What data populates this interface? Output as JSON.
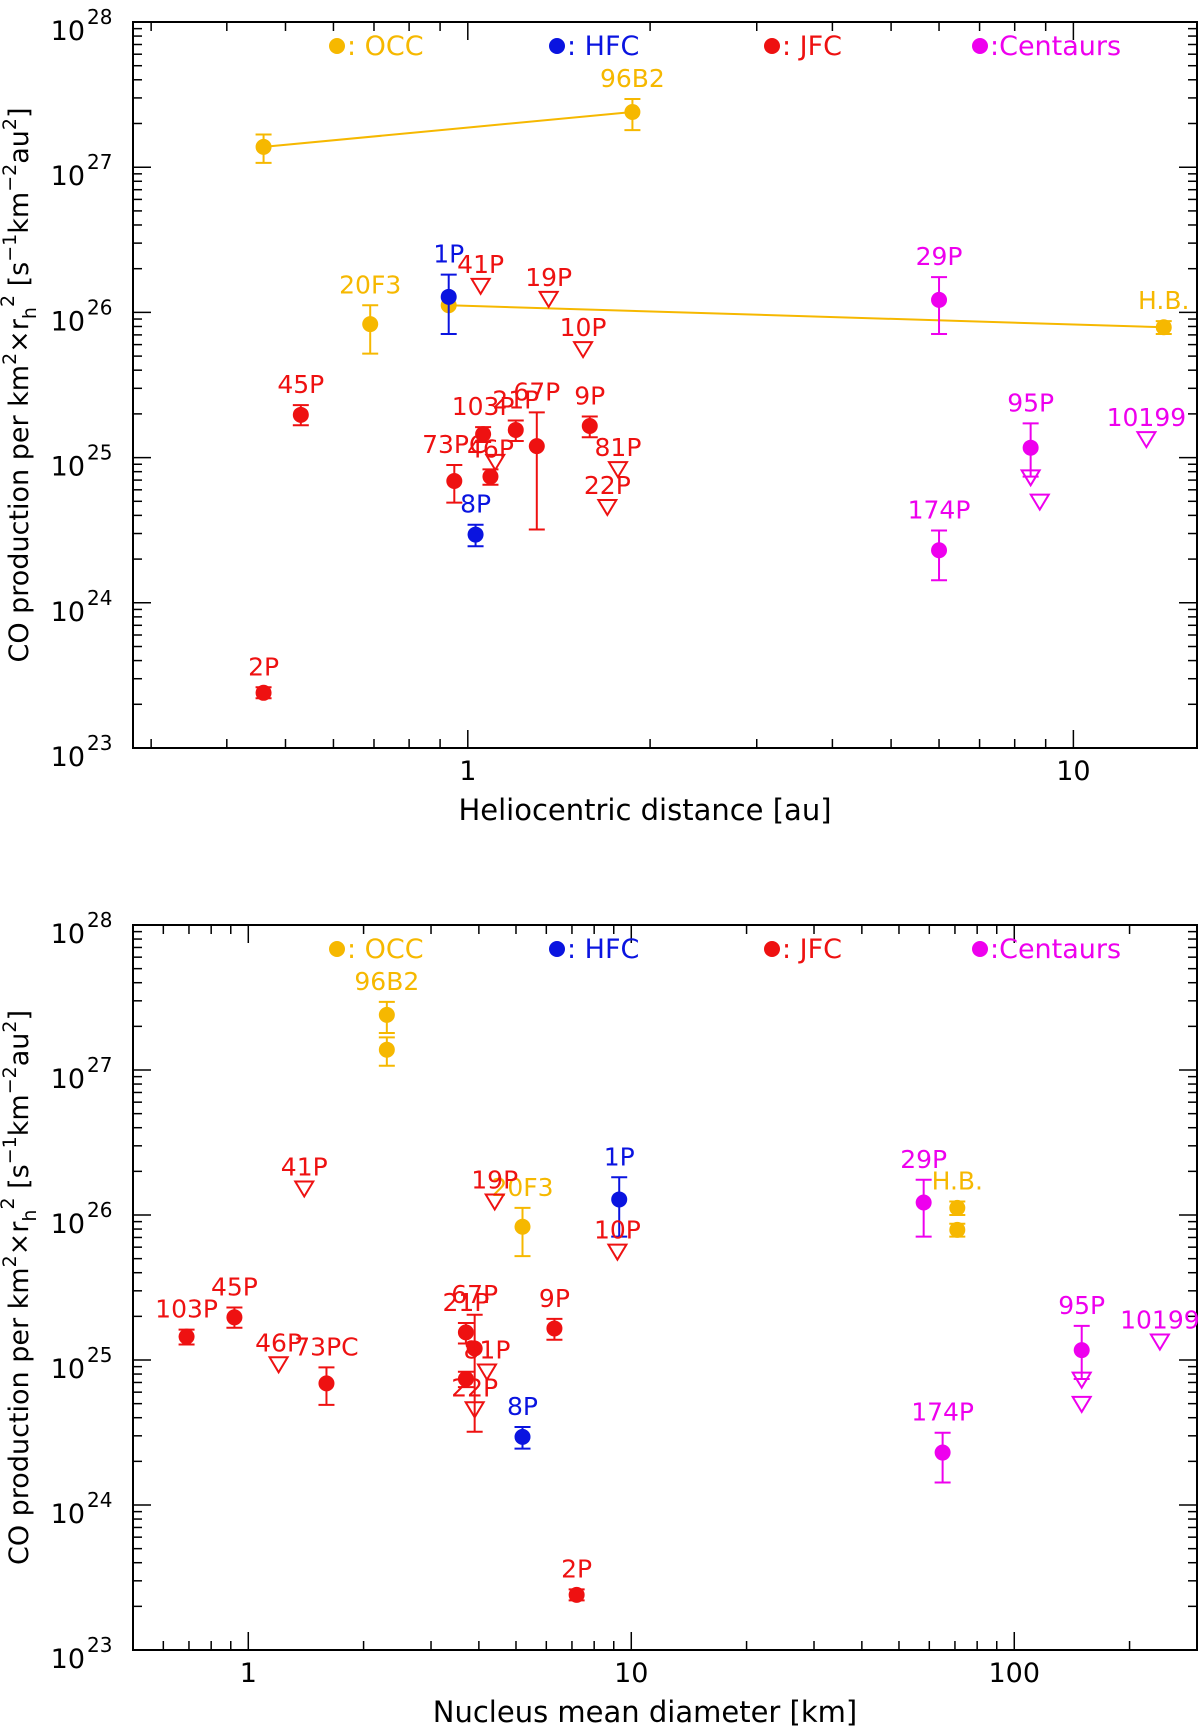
{
  "colors": {
    "OCC": "#f6b800",
    "HFC": "#0a14e0",
    "JFC": "#ee1111",
    "Centaurs": "#ee00ee",
    "axis": "#000000"
  },
  "legend": [
    {
      "group": "OCC",
      "label": ": OCC"
    },
    {
      "group": "HFC",
      "label": ": HFC"
    },
    {
      "group": "JFC",
      "label": ": JFC"
    },
    {
      "group": "Centaurs",
      "label": ":Centaurs"
    }
  ],
  "chart_data": [
    {
      "type": "scatter",
      "title": "",
      "xlabel": "Heliocentric distance [au]",
      "ylabel": {
        "text": "CO production per km",
        "sup1": "2",
        "mid": "×r",
        "sub": "h",
        "sup2": "2",
        "unit_open": " [s",
        "u1": "−1",
        "u2": "km",
        "u3": "−2",
        "u4": "au",
        "u5": "2",
        "unit_close": "]"
      },
      "xscale": "log",
      "yscale": "log",
      "xlim": [
        0.28,
        16
      ],
      "ylim": [
        1e+23,
        1e+28
      ],
      "xticks": [
        {
          "v": 1,
          "label": "1"
        },
        {
          "v": 10,
          "label": "10"
        }
      ],
      "yticks": [
        {
          "v": 1e+23,
          "base": "10",
          "exp": "23"
        },
        {
          "v": 1e+24,
          "base": "10",
          "exp": "24"
        },
        {
          "v": 1e+25,
          "base": "10",
          "exp": "25"
        },
        {
          "v": 1e+26,
          "base": "10",
          "exp": "26"
        },
        {
          "v": 1e+27,
          "base": "10",
          "exp": "27"
        },
        {
          "v": 1e+28,
          "base": "10",
          "exp": "28"
        }
      ],
      "lines": [
        {
          "group": "OCC",
          "points": [
            [
              0.46,
              1.38e+27
            ],
            [
              1.87,
              2.4e+27
            ]
          ]
        },
        {
          "group": "OCC",
          "points": [
            [
              0.93,
              1.12e+26
            ],
            [
              14.1,
              7.9e+25
            ]
          ]
        }
      ],
      "points": [
        {
          "name": "",
          "group": "OCC",
          "x": 0.46,
          "y": 1.38e+27,
          "lo": 1.07e+27,
          "hi": 1.68e+27,
          "kind": "point"
        },
        {
          "name": "96B2",
          "group": "OCC",
          "x": 1.87,
          "y": 2.4e+27,
          "lo": 1.8e+27,
          "hi": 2.95e+27,
          "kind": "point"
        },
        {
          "name": "20F3",
          "group": "OCC",
          "x": 0.69,
          "y": 8.3e+25,
          "lo": 5.2e+25,
          "hi": 1.12e+26,
          "kind": "point"
        },
        {
          "name": "",
          "group": "OCC",
          "x": 0.93,
          "y": 1.12e+26,
          "lo": 1.12e+26,
          "hi": 1.12e+26,
          "kind": "point"
        },
        {
          "name": "H.B.",
          "group": "OCC",
          "x": 14.1,
          "y": 7.9e+25,
          "lo": 7.1e+25,
          "hi": 8.7e+25,
          "kind": "point"
        },
        {
          "name": "1P",
          "group": "HFC",
          "x": 0.93,
          "y": 1.28e+26,
          "lo": 7.1e+25,
          "hi": 1.82e+26,
          "kind": "point"
        },
        {
          "name": "8P",
          "group": "HFC",
          "x": 1.03,
          "y": 2.95e+24,
          "lo": 2.45e+24,
          "hi": 3.45e+24,
          "kind": "point"
        },
        {
          "name": "2P",
          "group": "JFC",
          "x": 0.46,
          "y": 2.4e+23,
          "lo": 2.2e+23,
          "hi": 2.62e+23,
          "kind": "point"
        },
        {
          "name": "45P",
          "group": "JFC",
          "x": 0.53,
          "y": 1.97e+25,
          "lo": 1.67e+25,
          "hi": 2.3e+25,
          "kind": "point"
        },
        {
          "name": "73PC",
          "group": "JFC",
          "x": 0.95,
          "y": 6.9e+24,
          "lo": 4.9e+24,
          "hi": 8.9e+24,
          "kind": "point"
        },
        {
          "name": "103P",
          "group": "JFC",
          "x": 1.06,
          "y": 1.45e+25,
          "lo": 1.28e+25,
          "hi": 1.62e+25,
          "kind": "point"
        },
        {
          "name": "46P",
          "group": "JFC",
          "x": 1.09,
          "y": 7.4e+24,
          "lo": 6.5e+24,
          "hi": 8.3e+24,
          "kind": "point"
        },
        {
          "name": "21P",
          "group": "JFC",
          "x": 1.2,
          "y": 1.55e+25,
          "lo": 1.3e+25,
          "hi": 1.8e+25,
          "kind": "point"
        },
        {
          "name": "67P",
          "group": "JFC",
          "x": 1.3,
          "y": 1.2e+25,
          "lo": 3.2e+24,
          "hi": 2.05e+25,
          "kind": "point"
        },
        {
          "name": "9P",
          "group": "JFC",
          "x": 1.59,
          "y": 1.65e+25,
          "lo": 1.38e+25,
          "hi": 1.92e+25,
          "kind": "point"
        },
        {
          "name": "41P",
          "group": "JFC",
          "x": 1.05,
          "y": 1.5e+26,
          "kind": "upper"
        },
        {
          "name": "",
          "group": "JFC",
          "x": 1.11,
          "y": 9.2e+24,
          "kind": "upper"
        },
        {
          "name": "19P",
          "group": "JFC",
          "x": 1.36,
          "y": 1.22e+26,
          "kind": "upper"
        },
        {
          "name": "10P",
          "group": "JFC",
          "x": 1.55,
          "y": 5.5e+25,
          "kind": "upper"
        },
        {
          "name": "81P",
          "group": "JFC",
          "x": 1.77,
          "y": 8.2e+24,
          "kind": "upper"
        },
        {
          "name": "22P",
          "group": "JFC",
          "x": 1.7,
          "y": 4.5e+24,
          "kind": "upper"
        },
        {
          "name": "29P",
          "group": "Centaurs",
          "x": 6.0,
          "y": 1.22e+26,
          "lo": 7.1e+25,
          "hi": 1.75e+26,
          "kind": "point"
        },
        {
          "name": "174P",
          "group": "Centaurs",
          "x": 6.0,
          "y": 2.3e+24,
          "lo": 1.43e+24,
          "hi": 3.15e+24,
          "kind": "point"
        },
        {
          "name": "95P",
          "group": "Centaurs",
          "x": 8.5,
          "y": 1.17e+25,
          "lo": 7.4e+24,
          "hi": 1.72e+25,
          "kind": "point"
        },
        {
          "name": "",
          "group": "Centaurs",
          "x": 8.5,
          "y": 7.2e+24,
          "kind": "upper"
        },
        {
          "name": "",
          "group": "Centaurs",
          "x": 8.8,
          "y": 4.9e+24,
          "kind": "upper"
        },
        {
          "name": "10199",
          "group": "Centaurs",
          "x": 13.2,
          "y": 1.32e+25,
          "kind": "upper"
        }
      ]
    },
    {
      "type": "scatter",
      "title": "",
      "xlabel": "Nucleus mean diameter [km]",
      "ylabel": {
        "text": "CO production per km",
        "sup1": "2",
        "mid": "×r",
        "sub": "h",
        "sup2": "2",
        "unit_open": " [s",
        "u1": "−1",
        "u2": "km",
        "u3": "−2",
        "u4": "au",
        "u5": "2",
        "unit_close": "]"
      },
      "xscale": "log",
      "yscale": "log",
      "xlim": [
        0.5,
        300
      ],
      "ylim": [
        1e+23,
        1e+28
      ],
      "xticks": [
        {
          "v": 1,
          "label": "1"
        },
        {
          "v": 10,
          "label": "10"
        },
        {
          "v": 100,
          "label": "100"
        }
      ],
      "yticks": [
        {
          "v": 1e+23,
          "base": "10",
          "exp": "23"
        },
        {
          "v": 1e+24,
          "base": "10",
          "exp": "24"
        },
        {
          "v": 1e+25,
          "base": "10",
          "exp": "25"
        },
        {
          "v": 1e+26,
          "base": "10",
          "exp": "26"
        },
        {
          "v": 1e+27,
          "base": "10",
          "exp": "27"
        },
        {
          "v": 1e+28,
          "base": "10",
          "exp": "28"
        }
      ],
      "lines": [],
      "points": [
        {
          "name": "96B2",
          "group": "OCC",
          "x": 2.3,
          "y": 2.4e+27,
          "lo": 1.8e+27,
          "hi": 2.95e+27,
          "kind": "point"
        },
        {
          "name": "",
          "group": "OCC",
          "x": 2.3,
          "y": 1.38e+27,
          "lo": 1.07e+27,
          "hi": 1.68e+27,
          "kind": "point"
        },
        {
          "name": "20F3",
          "group": "OCC",
          "x": 5.2,
          "y": 8.3e+25,
          "lo": 5.2e+25,
          "hi": 1.12e+26,
          "kind": "point"
        },
        {
          "name": "H.B.",
          "group": "OCC",
          "x": 71,
          "y": 1.12e+26,
          "lo": 1e+26,
          "hi": 1.24e+26,
          "kind": "point"
        },
        {
          "name": "",
          "group": "OCC",
          "x": 71,
          "y": 7.9e+25,
          "lo": 7.1e+25,
          "hi": 8.7e+25,
          "kind": "point"
        },
        {
          "name": "1P",
          "group": "HFC",
          "x": 9.3,
          "y": 1.28e+26,
          "lo": 7.1e+25,
          "hi": 1.82e+26,
          "kind": "point"
        },
        {
          "name": "8P",
          "group": "HFC",
          "x": 5.2,
          "y": 2.95e+24,
          "lo": 2.45e+24,
          "hi": 3.45e+24,
          "kind": "point"
        },
        {
          "name": "2P",
          "group": "JFC",
          "x": 7.2,
          "y": 2.4e+23,
          "lo": 2.2e+23,
          "hi": 2.62e+23,
          "kind": "point"
        },
        {
          "name": "103P",
          "group": "JFC",
          "x": 0.69,
          "y": 1.45e+25,
          "lo": 1.28e+25,
          "hi": 1.62e+25,
          "kind": "point"
        },
        {
          "name": "45P",
          "group": "JFC",
          "x": 0.92,
          "y": 1.97e+25,
          "lo": 1.67e+25,
          "hi": 2.3e+25,
          "kind": "point"
        },
        {
          "name": "73PC",
          "group": "JFC",
          "x": 1.6,
          "y": 6.9e+24,
          "lo": 4.9e+24,
          "hi": 8.9e+24,
          "kind": "point"
        },
        {
          "name": "21P",
          "group": "JFC",
          "x": 3.7,
          "y": 1.55e+25,
          "lo": 1.3e+25,
          "hi": 1.8e+25,
          "kind": "point"
        },
        {
          "name": "",
          "group": "JFC",
          "x": 3.7,
          "y": 7.4e+24,
          "lo": 6.5e+24,
          "hi": 8.3e+24,
          "kind": "point"
        },
        {
          "name": "67P",
          "group": "JFC",
          "x": 3.9,
          "y": 1.2e+25,
          "lo": 3.2e+24,
          "hi": 2.05e+25,
          "kind": "point"
        },
        {
          "name": "9P",
          "group": "JFC",
          "x": 6.3,
          "y": 1.65e+25,
          "lo": 1.38e+25,
          "hi": 1.92e+25,
          "kind": "point"
        },
        {
          "name": "41P",
          "group": "JFC",
          "x": 1.4,
          "y": 1.5e+26,
          "kind": "upper"
        },
        {
          "name": "46P",
          "group": "JFC",
          "x": 1.2,
          "y": 9.2e+24,
          "kind": "upper"
        },
        {
          "name": "19P",
          "group": "JFC",
          "x": 4.4,
          "y": 1.22e+26,
          "kind": "upper"
        },
        {
          "name": "10P",
          "group": "JFC",
          "x": 9.2,
          "y": 5.5e+25,
          "kind": "upper"
        },
        {
          "name": "81P",
          "group": "JFC",
          "x": 4.2,
          "y": 8.2e+24,
          "kind": "upper"
        },
        {
          "name": "22P",
          "group": "JFC",
          "x": 3.9,
          "y": 4.5e+24,
          "kind": "upper"
        },
        {
          "name": "29P",
          "group": "Centaurs",
          "x": 58,
          "y": 1.22e+26,
          "lo": 7.1e+25,
          "hi": 1.75e+26,
          "kind": "point"
        },
        {
          "name": "174P",
          "group": "Centaurs",
          "x": 65,
          "y": 2.3e+24,
          "lo": 1.43e+24,
          "hi": 3.15e+24,
          "kind": "point"
        },
        {
          "name": "95P",
          "group": "Centaurs",
          "x": 150,
          "y": 1.17e+25,
          "lo": 7.4e+24,
          "hi": 1.72e+25,
          "kind": "point"
        },
        {
          "name": "",
          "group": "Centaurs",
          "x": 150,
          "y": 7.2e+24,
          "kind": "upper"
        },
        {
          "name": "",
          "group": "Centaurs",
          "x": 150,
          "y": 4.9e+24,
          "kind": "upper"
        },
        {
          "name": "10199",
          "group": "Centaurs",
          "x": 240,
          "y": 1.32e+25,
          "kind": "upper"
        }
      ]
    }
  ]
}
